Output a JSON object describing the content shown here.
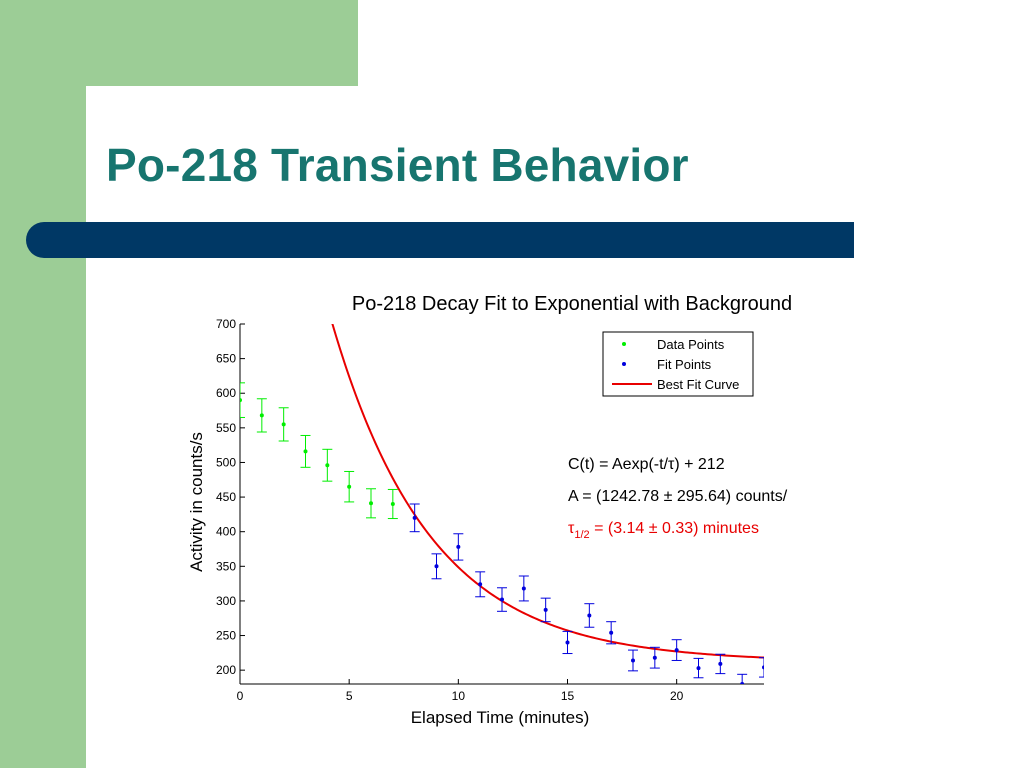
{
  "slide": {
    "title": "Po-218 Transient Behavior"
  },
  "colors": {
    "sidebar_green": "#9ccd96",
    "title_teal": "#17756f",
    "bar_navy": "#003865",
    "data_points": "#00ee00",
    "fit_points": "#0000dd",
    "fit_curve": "#e80000"
  },
  "chart_data": {
    "type": "scatter",
    "title": "Po-218 Decay Fit to Exponential with Background",
    "xlabel": "Elapsed Time (minutes)",
    "ylabel": "Activity in counts/s",
    "xlim": [
      0,
      24
    ],
    "ylim": [
      180,
      700
    ],
    "x_ticks": [
      0,
      5,
      10,
      15,
      20
    ],
    "y_ticks": [
      200,
      250,
      300,
      350,
      400,
      450,
      500,
      550,
      600,
      650,
      700
    ],
    "grid": false,
    "legend_position": "top-right",
    "series": [
      {
        "name": "Data Points",
        "marker": "point",
        "color": "#00ee00",
        "x": [
          0,
          1,
          2,
          3,
          4,
          5,
          6,
          7
        ],
        "y": [
          590,
          568,
          555,
          516,
          496,
          465,
          441,
          440
        ],
        "err": [
          25,
          24,
          24,
          23,
          23,
          22,
          21,
          21
        ]
      },
      {
        "name": "Fit Points",
        "marker": "point",
        "color": "#0000dd",
        "x": [
          8,
          9,
          10,
          11,
          12,
          13,
          14,
          15,
          16,
          17,
          18,
          19,
          20,
          21,
          22,
          23,
          24
        ],
        "y": [
          420,
          350,
          378,
          324,
          302,
          318,
          287,
          240,
          279,
          254,
          214,
          218,
          229,
          203,
          209,
          180,
          204
        ],
        "err": [
          20,
          18,
          19,
          18,
          17,
          18,
          17,
          16,
          17,
          16,
          15,
          15,
          15,
          14,
          14,
          14,
          14
        ]
      },
      {
        "name": "Best Fit Curve",
        "marker": "line",
        "color": "#e80000",
        "model": {
          "A": 1242.78,
          "background": 212,
          "half_life": 3.14
        }
      }
    ],
    "annotations": {
      "equation": "C(t) = Aexp(-t/τ) + 212",
      "amplitude": "A = (1242.78 ± 295.64) counts/",
      "half_life_symbol": "τ",
      "half_life_sub": "1/2",
      "half_life_value": " = (3.14 ± 0.33) minutes"
    }
  }
}
